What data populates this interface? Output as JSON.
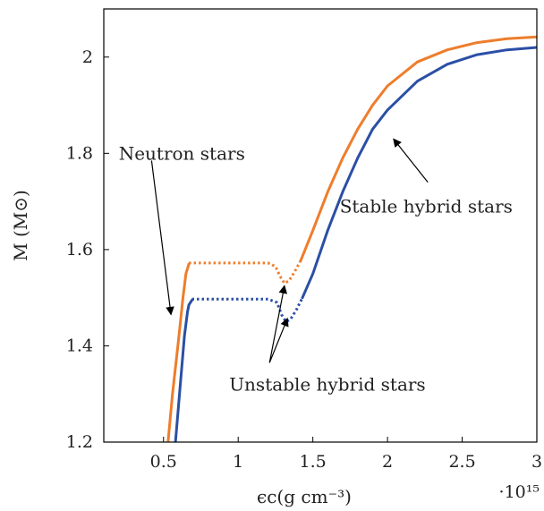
{
  "chart_data": {
    "type": "line",
    "title": "",
    "xlabel": "ϵc(g cm⁻³)",
    "ylabel": "M (M⊙)",
    "x_multiplier_label": "·10¹⁵",
    "xlim": [
      0.1,
      3.0
    ],
    "ylim": [
      1.2,
      2.1
    ],
    "x_ticks": [
      0.5,
      1,
      1.5,
      2,
      2.5,
      3
    ],
    "x_tick_labels": [
      "0.5",
      "1",
      "1.5",
      "2",
      "2.5",
      "3"
    ],
    "y_ticks": [
      1.2,
      1.4,
      1.6,
      1.8,
      2.0
    ],
    "y_tick_labels": [
      "1.2",
      "1.4",
      "1.6",
      "1.8",
      "2"
    ],
    "grid": false,
    "legend": "none",
    "series": [
      {
        "color": "#ee7d2c",
        "segments": [
          {
            "style": "solid",
            "x": [
              0.53,
              0.56,
              0.6,
              0.63,
              0.65,
              0.67
            ],
            "y": [
              1.2,
              1.3,
              1.41,
              1.5,
              1.55,
              1.57
            ]
          },
          {
            "style": "dotted",
            "x": [
              0.67,
              0.8,
              1.0,
              1.2,
              1.25,
              1.28,
              1.31,
              1.34,
              1.38,
              1.42
            ],
            "y": [
              1.572,
              1.572,
              1.572,
              1.572,
              1.565,
              1.545,
              1.53,
              1.535,
              1.555,
              1.578
            ]
          },
          {
            "style": "solid",
            "x": [
              1.42,
              1.5,
              1.6,
              1.7,
              1.8,
              1.9,
              2.0,
              2.2,
              2.4,
              2.6,
              2.8,
              3.0
            ],
            "y": [
              1.578,
              1.64,
              1.72,
              1.79,
              1.85,
              1.9,
              1.94,
              1.99,
              2.015,
              2.03,
              2.038,
              2.042
            ]
          }
        ]
      },
      {
        "color": "#2b4fa5",
        "segments": [
          {
            "style": "solid",
            "x": [
              0.58,
              0.61,
              0.64,
              0.66,
              0.67,
              0.69
            ],
            "y": [
              1.2,
              1.31,
              1.42,
              1.47,
              1.485,
              1.495
            ]
          },
          {
            "style": "dotted",
            "x": [
              0.69,
              0.8,
              1.0,
              1.2,
              1.26,
              1.29,
              1.32,
              1.35,
              1.39,
              1.43
            ],
            "y": [
              1.497,
              1.497,
              1.497,
              1.497,
              1.49,
              1.465,
              1.45,
              1.455,
              1.475,
              1.5
            ]
          },
          {
            "style": "solid",
            "x": [
              1.43,
              1.5,
              1.6,
              1.7,
              1.8,
              1.9,
              2.0,
              2.2,
              2.4,
              2.6,
              2.8,
              3.0
            ],
            "y": [
              1.5,
              1.55,
              1.64,
              1.72,
              1.79,
              1.85,
              1.89,
              1.95,
              1.985,
              2.005,
              2.015,
              2.02
            ]
          }
        ]
      }
    ],
    "annotations": [
      {
        "text": "Neutron stars",
        "x": 0.2,
        "y": 1.8,
        "arrows": [
          {
            "from": [
              0.42,
              1.785
            ],
            "to": [
              0.55,
              1.465
            ]
          }
        ]
      },
      {
        "text": "Stable hybrid stars",
        "x": 1.68,
        "y": 1.69,
        "arrows": [
          {
            "from": [
              2.27,
              1.74
            ],
            "to": [
              2.04,
              1.83
            ]
          }
        ]
      },
      {
        "text": "Unstable hybrid stars",
        "x": 0.94,
        "y": 1.32,
        "arrows": [
          {
            "from": [
              1.21,
              1.365
            ],
            "to": [
              1.31,
              1.525
            ]
          },
          {
            "from": [
              1.21,
              1.365
            ],
            "to": [
              1.33,
              1.457
            ]
          }
        ]
      }
    ]
  }
}
